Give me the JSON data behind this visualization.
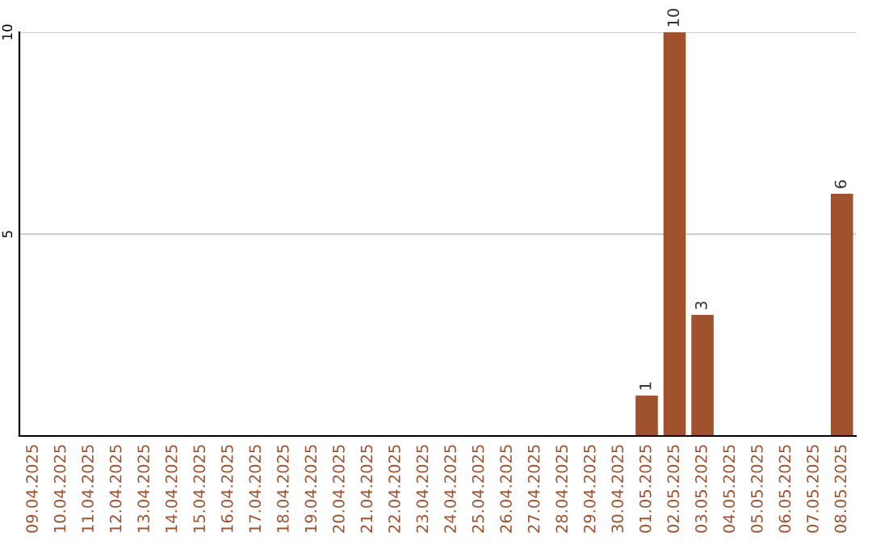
{
  "chart_data": {
    "type": "bar",
    "categories": [
      "09.04.2025",
      "10.04.2025",
      "11.04.2025",
      "12.04.2025",
      "13.04.2025",
      "14.04.2025",
      "15.04.2025",
      "16.04.2025",
      "17.04.2025",
      "18.04.2025",
      "19.04.2025",
      "20.04.2025",
      "21.04.2025",
      "22.04.2025",
      "23.04.2025",
      "24.04.2025",
      "25.04.2025",
      "26.04.2025",
      "27.04.2025",
      "28.04.2025",
      "29.04.2025",
      "30.04.2025",
      "01.05.2025",
      "02.05.2025",
      "03.05.2025",
      "04.05.2025",
      "05.05.2025",
      "06.05.2025",
      "07.05.2025",
      "08.05.2025"
    ],
    "series": [
      {
        "color": "#a0522d",
        "values": [
          0,
          0,
          0,
          0,
          0,
          0,
          0,
          0,
          0,
          0,
          0,
          0,
          0,
          0,
          0,
          0,
          0,
          0,
          0,
          0,
          0,
          0,
          1,
          10,
          3,
          0,
          0,
          0,
          0,
          6
        ],
        "value_labels": [
          null,
          null,
          null,
          null,
          null,
          null,
          null,
          null,
          null,
          null,
          null,
          null,
          null,
          null,
          null,
          null,
          null,
          null,
          null,
          null,
          null,
          null,
          "1",
          "10",
          "3",
          null,
          null,
          null,
          null,
          "6"
        ]
      }
    ],
    "ylim": [
      0,
      10
    ],
    "yticks": [
      5,
      10
    ],
    "grid": "y"
  }
}
